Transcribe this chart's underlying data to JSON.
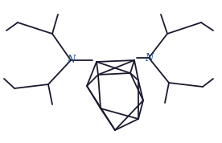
{
  "bg_color": "#ffffff",
  "line_color": "#1a1a2e",
  "N_color": "#1a4a8a",
  "line_width": 1.3,
  "figsize": [
    2.76,
    1.78
  ],
  "dpi": 100,
  "N_label_fontsize": 8.5,
  "N_label_fontstyle": "italic"
}
